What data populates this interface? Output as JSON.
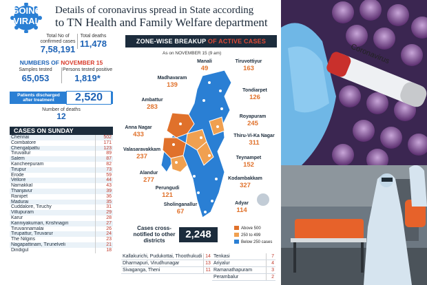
{
  "badge": {
    "line1": "GOING",
    "line2": "VIRAL"
  },
  "headline": {
    "line1": "Details of coronavirus spread in State according",
    "line2": "to TN Health and Family Welfare department"
  },
  "totals": {
    "confirmed_label": "Total No of confirmed cases",
    "confirmed": "7,58,191",
    "deaths_label": "Total deaths",
    "deaths": "11,478"
  },
  "november": {
    "heading_prefix": "NUMBERS OF ",
    "heading_month": "NOVEMBER 15",
    "samples_label": "Samples tested",
    "samples": "65,053",
    "positive_label": "Persons tested positive",
    "positive": "1,819*",
    "discharged_label": "Patients discharged after treatment",
    "discharged": "2,520",
    "deaths_label": "Number of deaths",
    "deaths": "12"
  },
  "sunday": {
    "heading": "CASES ON SUNDAY",
    "rows": [
      {
        "district": "Chennai",
        "cases": "502"
      },
      {
        "district": "Coimbatore",
        "cases": "171"
      },
      {
        "district": "Chengalpattu",
        "cases": "123"
      },
      {
        "district": "Tiruvallur",
        "cases": "89"
      },
      {
        "district": "Salem",
        "cases": "87"
      },
      {
        "district": "Kancheepuram",
        "cases": "82"
      },
      {
        "district": "Tirupur",
        "cases": "73"
      },
      {
        "district": "Erode",
        "cases": "59"
      },
      {
        "district": "Vellore",
        "cases": "44"
      },
      {
        "district": "Namakkal",
        "cases": "43"
      },
      {
        "district": "Thanjavur",
        "cases": "39"
      },
      {
        "district": "Ranipet",
        "cases": "36"
      },
      {
        "district": "Madurai",
        "cases": "35"
      },
      {
        "district": "Cuddalore, Tiruchy",
        "cases": "31"
      },
      {
        "district": "Villupuram",
        "cases": "29"
      },
      {
        "district": "Karur",
        "cases": "28"
      },
      {
        "district": "Kanniyakumari, Krishnagiri",
        "cases": "27"
      },
      {
        "district": "Tiruvannamalai",
        "cases": "26"
      },
      {
        "district": "Tirupattur, Tiruvarur",
        "cases": "24"
      },
      {
        "district": "The Nilgiris",
        "cases": "23"
      },
      {
        "district": "Nagapattinam, Tirunelveli",
        "cases": "21"
      },
      {
        "district": "Dindigul",
        "cases": "18"
      }
    ]
  },
  "zone": {
    "heading_prefix": "ZONE-WISE BREAKUP ",
    "heading_accent": "OF ACTIVE CASES",
    "as_of": "As on NOVEMBER 15 (9 am)",
    "zones": [
      {
        "name": "Manali",
        "value": "49"
      },
      {
        "name": "Tiruvottiyur",
        "value": "163"
      },
      {
        "name": "Madhavaram",
        "value": "139"
      },
      {
        "name": "Tondiarpet",
        "value": "126"
      },
      {
        "name": "Ambattur",
        "value": "283"
      },
      {
        "name": "Royapuram",
        "value": "245"
      },
      {
        "name": "Anna Nagar",
        "value": "433"
      },
      {
        "name": "Thiru-Vi-Ka Nagar",
        "value": "311"
      },
      {
        "name": "Valasaravakkam",
        "value": "237"
      },
      {
        "name": "Teynampet",
        "value": "152"
      },
      {
        "name": "Alandur",
        "value": "277"
      },
      {
        "name": "Kodambakkam",
        "value": "327"
      },
      {
        "name": "Perungudi",
        "value": "121"
      },
      {
        "name": "Adyar",
        "value": "114"
      },
      {
        "name": "Sholinganallur",
        "value": "67"
      }
    ],
    "cross_label": "Cases cross-notified to other districts",
    "cross_value": "2,248",
    "legend": [
      {
        "label": "Above 500",
        "color": "#e0712b"
      },
      {
        "label": "250 to 499",
        "color": "#f0a050"
      },
      {
        "label": "Below 250 cases",
        "color": "#2a7fd4"
      }
    ]
  },
  "more_districts": {
    "left": [
      {
        "district": "Kallakurichi, Pudukottai, Thoothukudi",
        "cases": "14"
      },
      {
        "district": "Dharmapuri, Virudhunagar",
        "cases": "13"
      },
      {
        "district": "Sivaganga, Theni",
        "cases": "11"
      }
    ],
    "right": [
      {
        "district": "Tenkasi",
        "cases": "7"
      },
      {
        "district": "Ariyalur",
        "cases": "4"
      },
      {
        "district": "Ramanathapuram",
        "cases": "3"
      },
      {
        "district": "Perambalur",
        "cases": "2"
      }
    ]
  },
  "photos": {
    "tube_label": "Coronavirus"
  }
}
